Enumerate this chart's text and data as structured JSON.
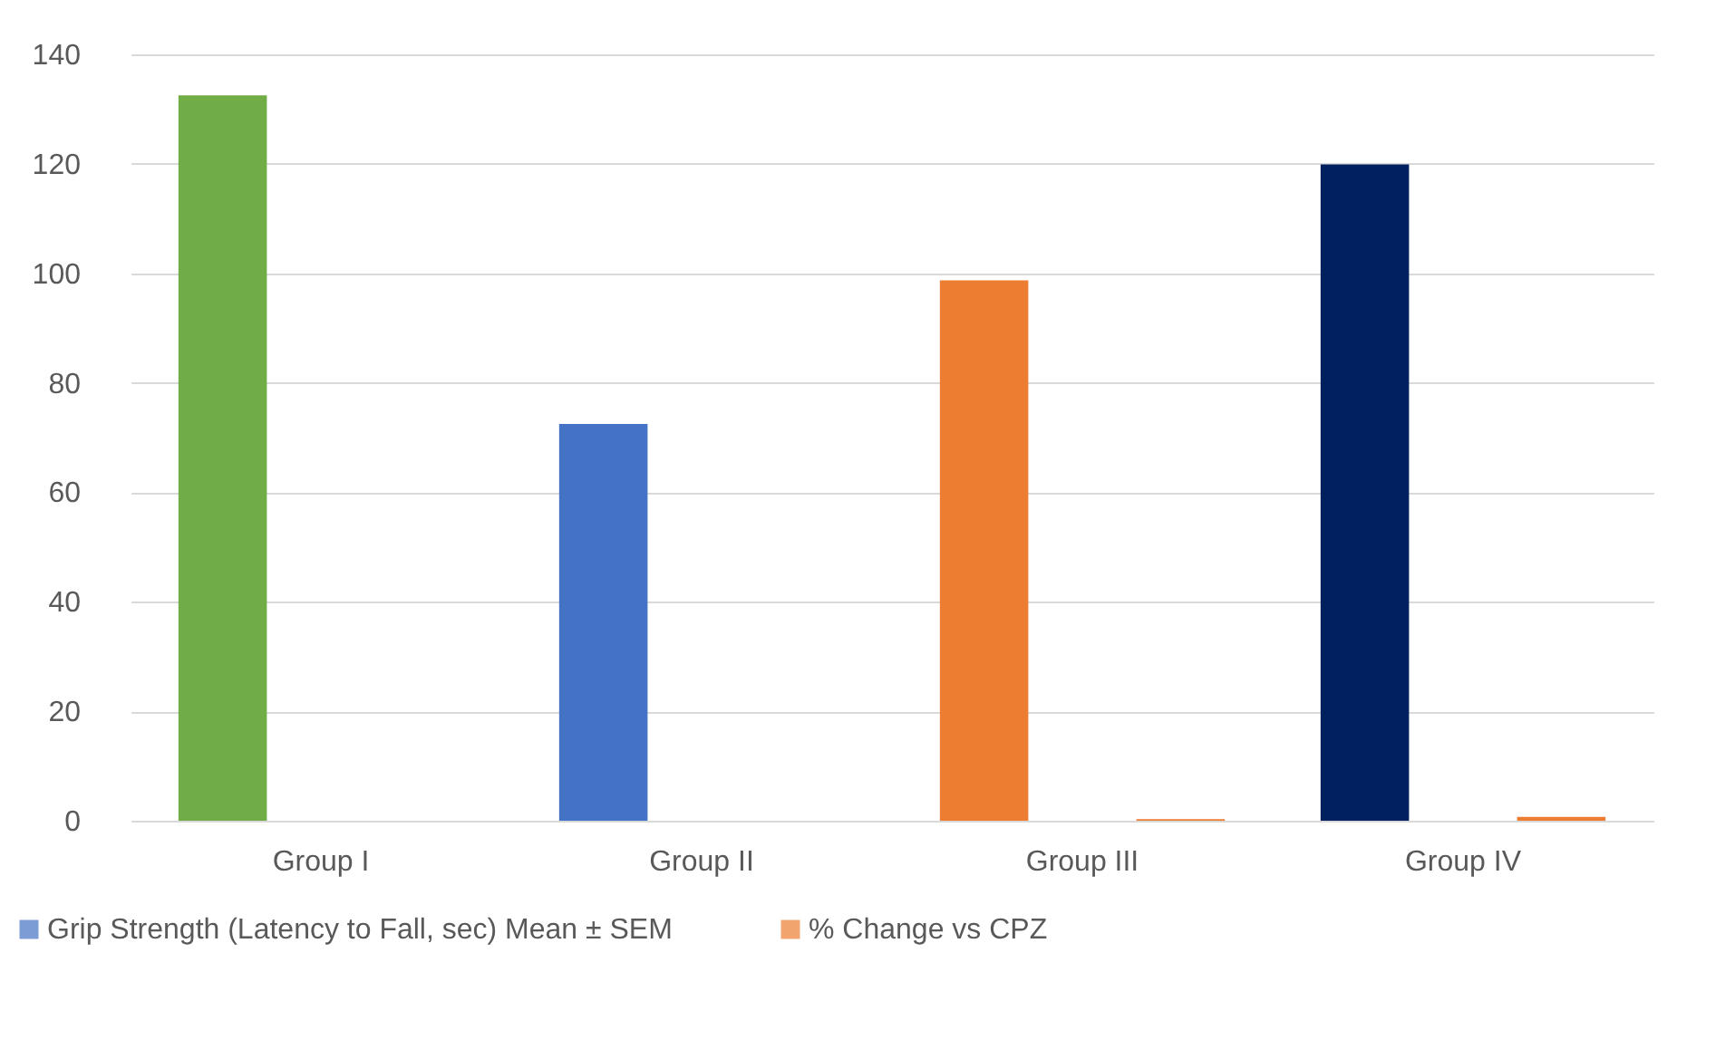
{
  "chart_data": {
    "type": "bar",
    "categories": [
      "Group I",
      "Group II",
      "Group III",
      "Group IV"
    ],
    "series": [
      {
        "name": "Grip Strength (Latency to Fall, sec) Mean ± SEM",
        "color": "#4472c4",
        "colors": [
          "#70ad47",
          "#4472c4",
          "#ed7d31",
          "#002060"
        ],
        "values": [
          132.5,
          72.5,
          98.7,
          119.9
        ]
      },
      {
        "name": "% Change vs CPZ",
        "color": "#ed7d31",
        "values": [
          null,
          null,
          0.3,
          0.7
        ]
      }
    ],
    "ylim": [
      0,
      140
    ],
    "yticks": [
      0,
      20,
      40,
      60,
      80,
      100,
      120,
      140
    ],
    "grid": "y",
    "legend": "bottom"
  }
}
